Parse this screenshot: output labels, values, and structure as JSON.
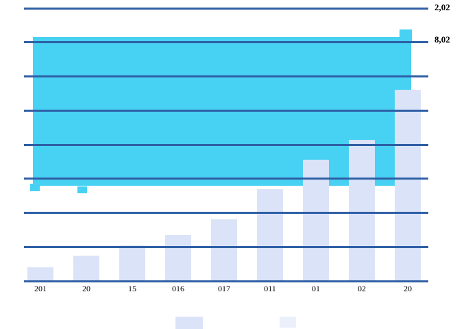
{
  "chart_data": {
    "type": "bar",
    "title": "",
    "xlabel": "",
    "ylabel": "",
    "categories": [
      "201",
      "20",
      "15",
      "016",
      "017",
      "011",
      "01",
      "02",
      "20"
    ],
    "series": [
      {
        "name": "light-blue-bars",
        "color": "#dae3f8",
        "values": [
          0.4,
          0.75,
          1.05,
          1.35,
          1.8,
          2.7,
          3.55,
          4.15,
          5.6
        ]
      }
    ],
    "overlay_block": {
      "name": "cyan-area",
      "color": "#47d1f2",
      "top_value": 7.15,
      "bottom_value": 2.8,
      "x_from_frac": 0.022,
      "x_to_frac": 0.958
    },
    "overlay_marks": [
      {
        "x_frac": 0.0153,
        "w_frac": 0.0237,
        "top_value": 2.85,
        "bottom_value": 2.63
      },
      {
        "x_frac": 0.132,
        "w_frac": 0.0237,
        "top_value": 2.78,
        "bottom_value": 2.57
      },
      {
        "x_frac": 0.929,
        "w_frac": 0.0305,
        "top_value": 7.37,
        "bottom_value": 6.99
      }
    ],
    "right_labels": [
      {
        "text": "2,02",
        "value": 8.05
      },
      {
        "text": "8,02",
        "value": 7.1
      }
    ],
    "ylim": [
      0,
      8
    ],
    "gridline_count": 9,
    "grid_on": true,
    "gridline_color": "#2e5fa5",
    "text_color": "#000000",
    "legend_position": "bottom",
    "legend": [
      {
        "color": "#dae3f8",
        "label": ""
      },
      {
        "color": "#eaeffb",
        "label": ""
      }
    ]
  }
}
